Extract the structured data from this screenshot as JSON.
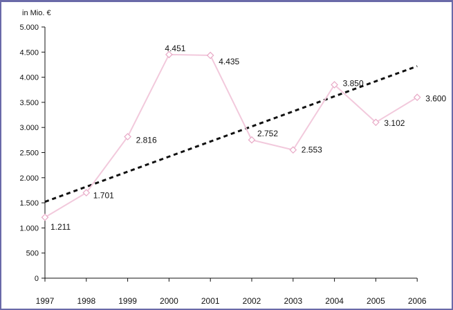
{
  "chart_data": {
    "type": "line",
    "title": "",
    "ylabel": "in Mio. €",
    "xlabel": "",
    "ylim": [
      0,
      5000
    ],
    "y_ticks": [
      0,
      500,
      1000,
      1500,
      2000,
      2500,
      3000,
      3500,
      4000,
      4500,
      5000
    ],
    "y_tick_labels": [
      "0",
      "500",
      "1.000",
      "1.500",
      "2.000",
      "2.500",
      "3.000",
      "3.500",
      "4.000",
      "4.500",
      "5.000"
    ],
    "categories": [
      "1997",
      "1998",
      "1999",
      "2000",
      "2001",
      "2002",
      "2003",
      "2004",
      "2005",
      "2006"
    ],
    "series": [
      {
        "values": [
          1211,
          1701,
          2816,
          4451,
          4435,
          2752,
          2553,
          3850,
          3102,
          3600
        ],
        "data_labels": [
          "1.211",
          "1.701",
          "2.816",
          "4.451",
          "4.435",
          "2.752",
          "2.553",
          "3.850",
          "3.102",
          "3.600"
        ],
        "color": "#f2c9dc",
        "marker": "diamond"
      }
    ],
    "trendline": {
      "style": "dashed",
      "color": "#111111",
      "start": {
        "category": "1997",
        "value": 1520
      },
      "end": {
        "category": "2006",
        "value": 4220
      }
    },
    "grid": false,
    "legend": "none"
  }
}
